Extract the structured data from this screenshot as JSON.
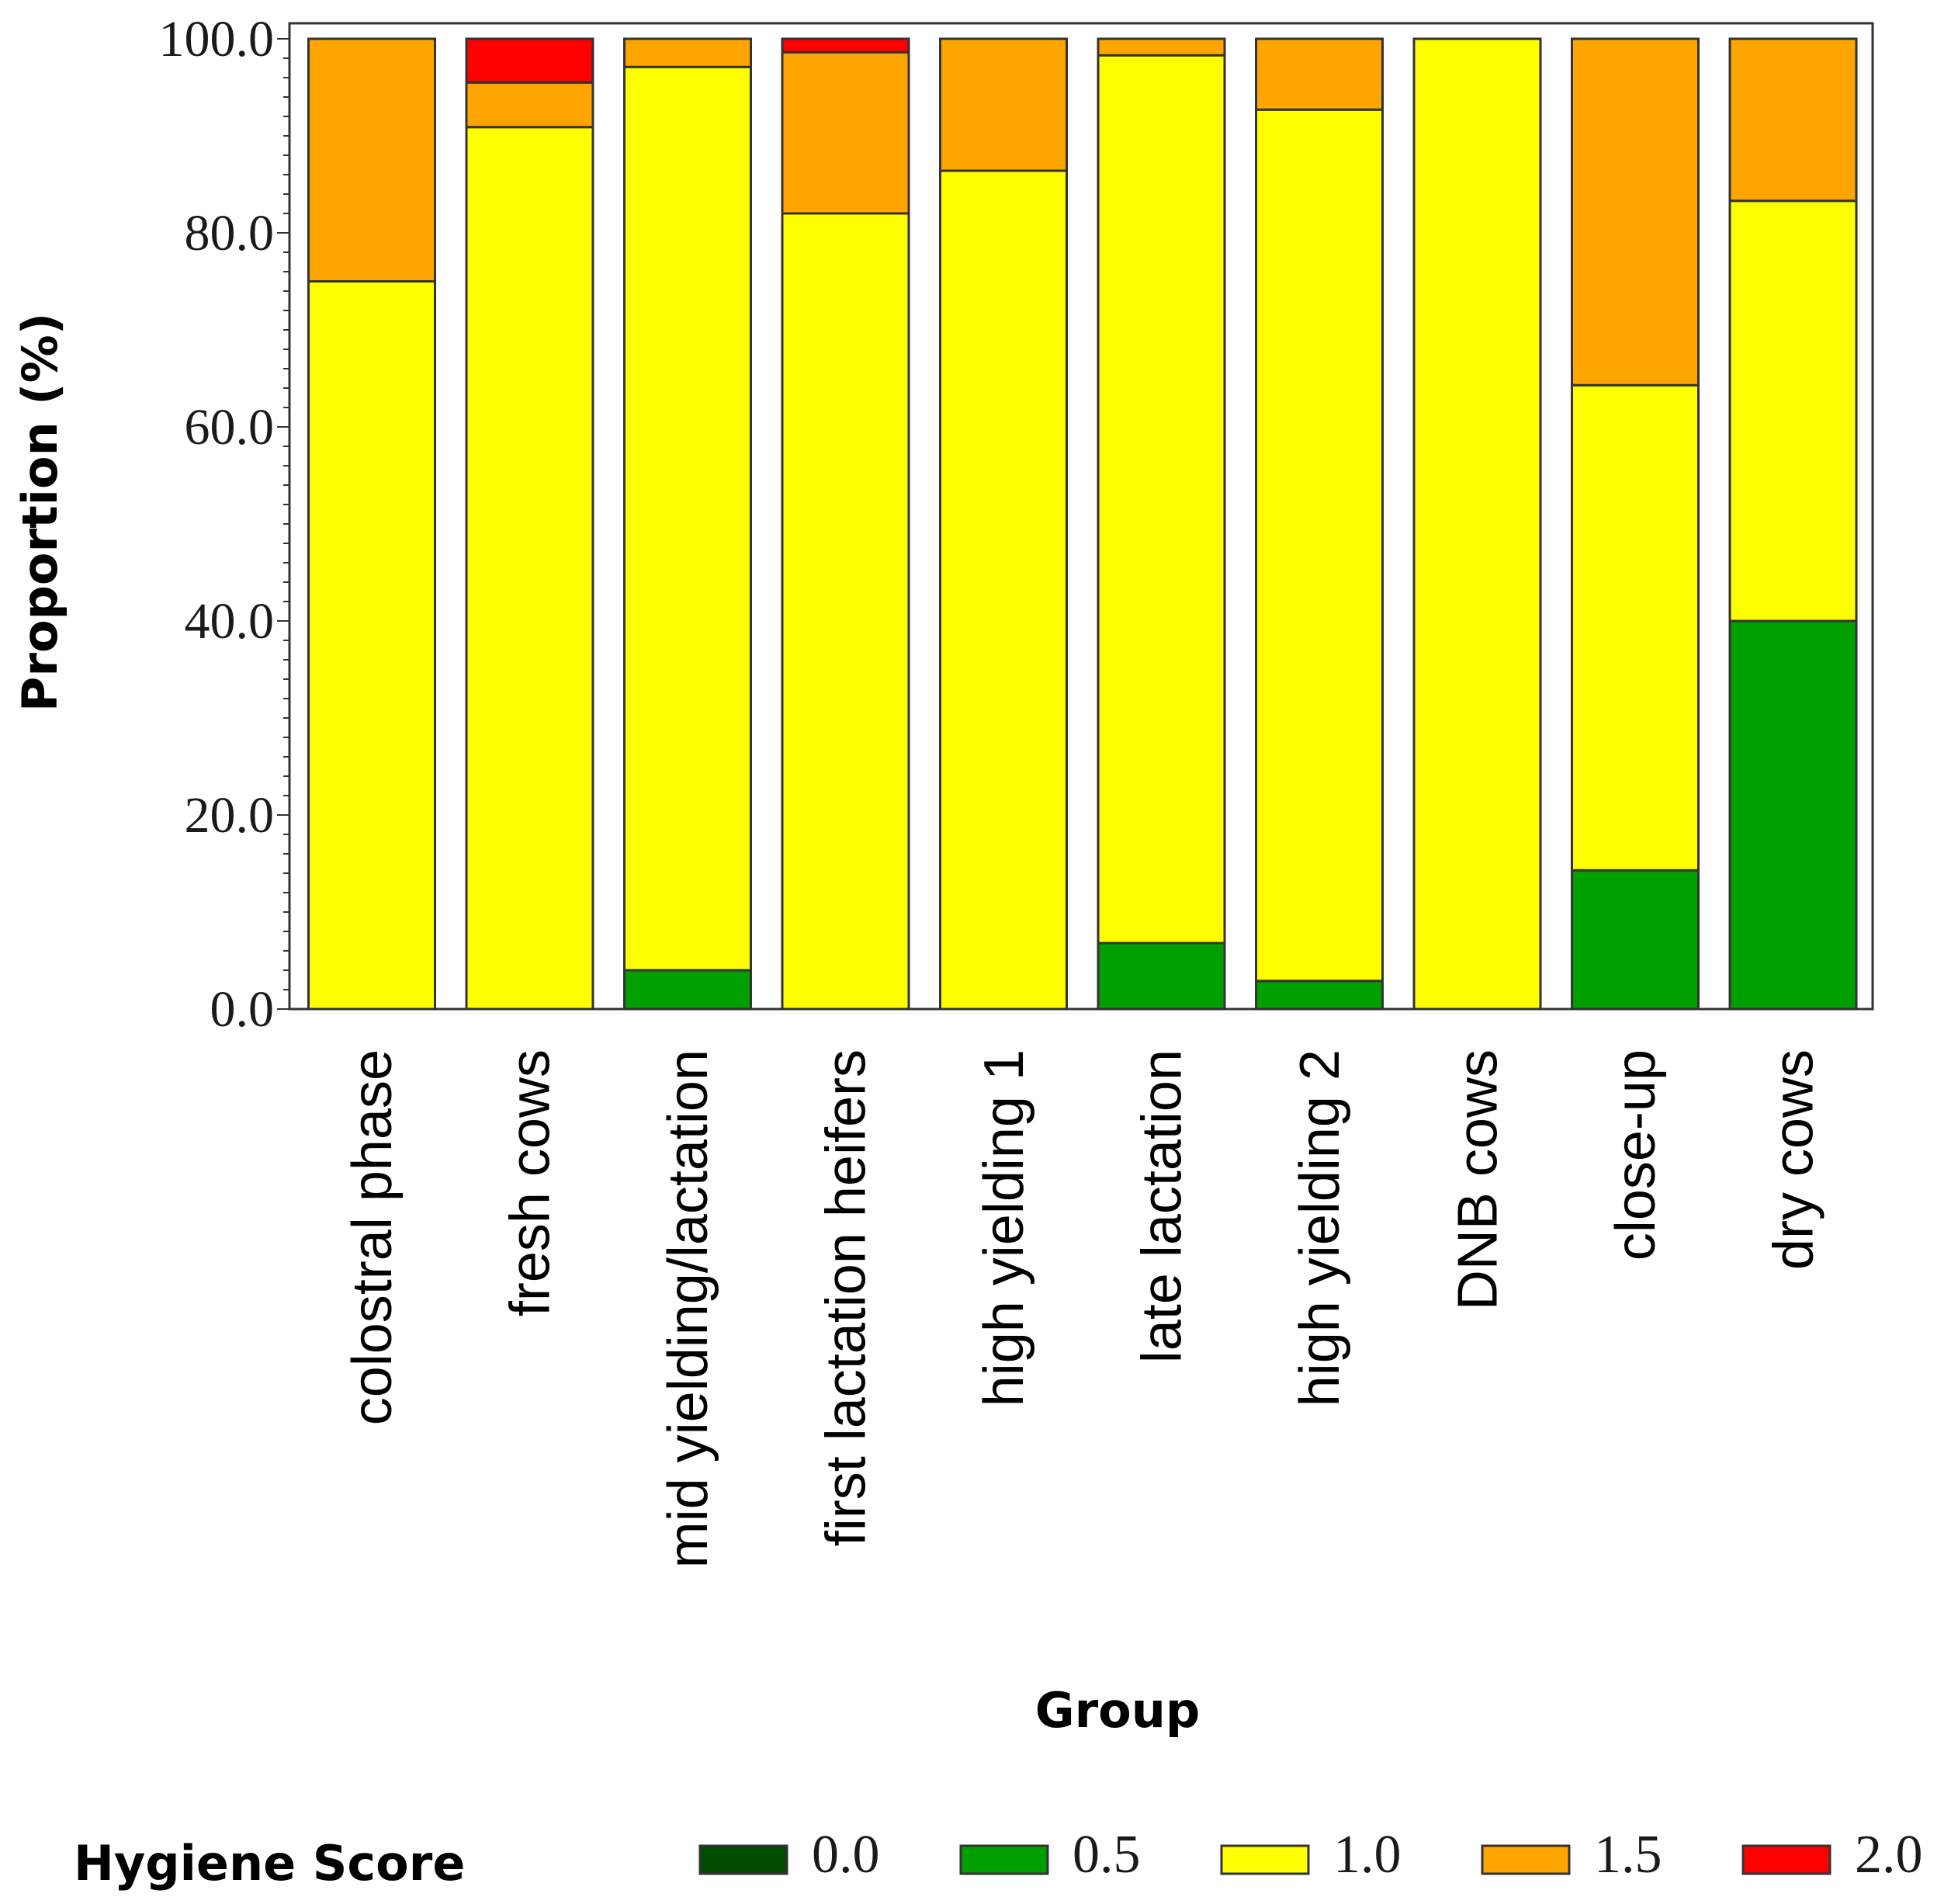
{
  "chart_data": {
    "type": "bar",
    "stacked": true,
    "title": "",
    "xlabel": "Group",
    "ylabel": "Proportion (%)",
    "ylim": [
      0,
      100
    ],
    "yticks": [
      "0.0",
      "20.0",
      "40.0",
      "60.0",
      "80.0",
      "100.0"
    ],
    "categories": [
      "colostral phase",
      "fresh cows",
      "mid yielding/lactation",
      "first lactation heifers",
      "high yielding 1",
      "late lactation",
      "high yielding 2",
      "DNB cows",
      "close-up",
      "dry cows"
    ],
    "legend_title": "Hygiene Score",
    "legend_position": "bottom",
    "series": [
      {
        "name": "0.0",
        "color": "#004d00",
        "values": [
          0,
          0,
          0,
          0,
          0,
          0,
          0,
          0,
          0,
          0
        ]
      },
      {
        "name": "0.5",
        "color": "#00a000",
        "values": [
          0,
          0,
          4.0,
          0,
          0,
          6.8,
          2.9,
          0,
          14.3,
          40.0
        ]
      },
      {
        "name": "1.0",
        "color": "#ffff00",
        "values": [
          75.0,
          90.9,
          93.1,
          82.0,
          86.4,
          91.5,
          89.8,
          100,
          50.0,
          43.3
        ]
      },
      {
        "name": "1.5",
        "color": "#ffa500",
        "values": [
          25.0,
          4.6,
          2.9,
          16.6,
          13.6,
          1.7,
          7.3,
          0,
          35.7,
          16.7
        ]
      },
      {
        "name": "2.0",
        "color": "#ff0000",
        "values": [
          0,
          4.5,
          0,
          1.4,
          0,
          0,
          0,
          0,
          0,
          0
        ]
      }
    ]
  }
}
